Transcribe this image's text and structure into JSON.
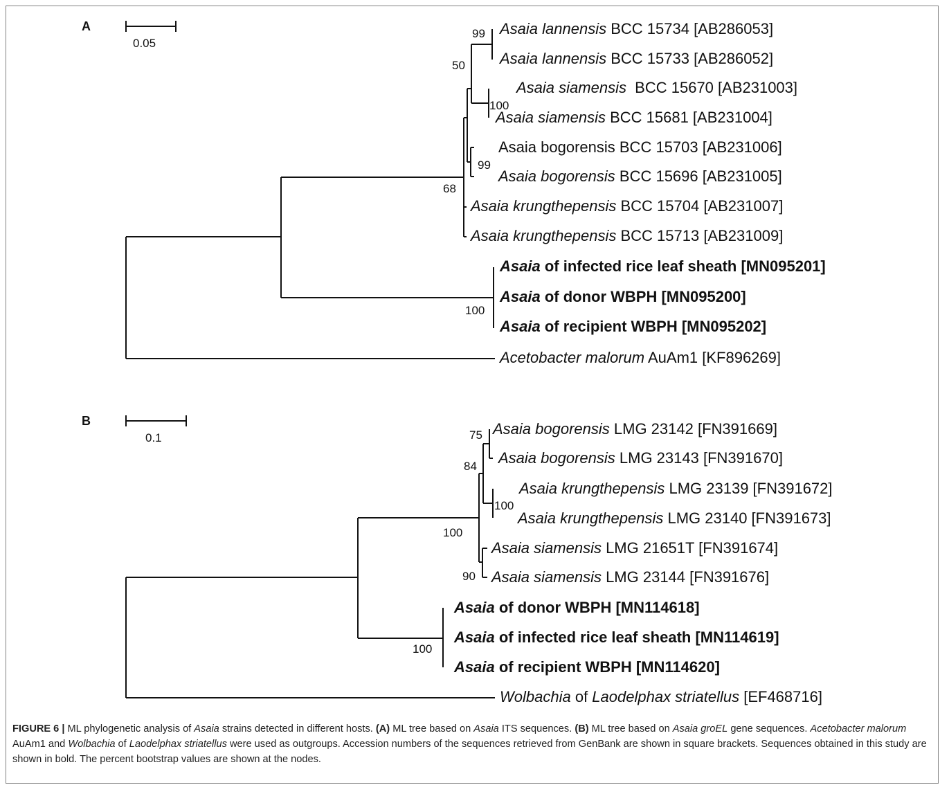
{
  "panels": [
    {
      "label": "A",
      "scale_label": "0.05",
      "taxa": [
        {
          "italic": "Asaia lannensis",
          "rest": " BCC 15734 [AB286053]",
          "bold": false
        },
        {
          "italic": "Asaia lannensis",
          "rest": " BCC 15733 [AB286052]",
          "bold": false
        },
        {
          "italic": "Asaia siamensis",
          "rest": "  BCC 15670 [AB231003]",
          "bold": false
        },
        {
          "italic": "Asaia siamensis",
          "rest": " BCC 15681 [AB231004]",
          "bold": false
        },
        {
          "italic": "",
          "rest": "Asaia bogorensis BCC 15703 [AB231006]",
          "bold": false
        },
        {
          "italic": "Asaia bogorensis",
          "rest": " BCC 15696 [AB231005]",
          "bold": false
        },
        {
          "italic": "Asaia krungthepensis",
          "rest": " BCC 15704 [AB231007]",
          "bold": false
        },
        {
          "italic": "Asaia krungthepensis",
          "rest": " BCC 15713 [AB231009]",
          "bold": false
        },
        {
          "italic": "Asaia",
          "rest": " of infected rice leaf sheath [MN095201]",
          "bold": true
        },
        {
          "italic": "Asaia",
          "rest": " of donor WBPH [MN095200]",
          "bold": true
        },
        {
          "italic": "Asaia",
          "rest": " of recipient WBPH [MN095202]",
          "bold": true
        },
        {
          "italic": "Acetobacter malorum",
          "rest": " AuAm1 [KF896269]",
          "bold": false
        }
      ],
      "bootstrap": [
        "99",
        "50",
        "100",
        "99",
        "68",
        "100"
      ]
    },
    {
      "label": "B",
      "scale_label": "0.1",
      "taxa": [
        {
          "italic": "Asaia bogorensis",
          "rest": " LMG 23142 [FN391669]",
          "bold": false
        },
        {
          "italic": "Asaia bogorensis",
          "rest": " LMG 23143 [FN391670]",
          "bold": false
        },
        {
          "italic": "Asaia krungthepensis",
          "rest": " LMG 23139 [FN391672]",
          "bold": false
        },
        {
          "italic": "Asaia krungthepensis",
          "rest": " LMG 23140 [FN391673]",
          "bold": false
        },
        {
          "italic": "Asaia siamensis",
          "rest": " LMG 21651T [FN391674]",
          "bold": false
        },
        {
          "italic": "Asaia siamensis",
          "rest": " LMG 23144 [FN391676]",
          "bold": false
        },
        {
          "italic": "Asaia",
          "rest": " of donor WBPH [MN114618]",
          "bold": true
        },
        {
          "italic": "Asaia",
          "rest": " of infected rice leaf sheath [MN114619]",
          "bold": true
        },
        {
          "italic": "Asaia",
          "rest": " of recipient WBPH [MN114620]",
          "bold": true
        },
        {
          "italic": "Wolbachia",
          "rest": " of ",
          "italic2": "Laodelphax striatellus",
          "rest2": " [EF468716]",
          "bold": false
        }
      ],
      "bootstrap": [
        "75",
        "84",
        "100",
        "100",
        "90",
        "100"
      ]
    }
  ],
  "caption": [
    {
      "t": "FIGURE 6 | ",
      "s": "b"
    },
    {
      "t": "ML phylogenetic analysis of ",
      "s": ""
    },
    {
      "t": "Asaia",
      "s": "i"
    },
    {
      "t": " strains detected in different hosts. ",
      "s": ""
    },
    {
      "t": "(A)",
      "s": "b"
    },
    {
      "t": " ML tree based on ",
      "s": ""
    },
    {
      "t": "Asaia",
      "s": "i"
    },
    {
      "t": " ITS sequences. ",
      "s": ""
    },
    {
      "t": "(B)",
      "s": "b"
    },
    {
      "t": " ML tree based on ",
      "s": ""
    },
    {
      "t": "Asaia groEL",
      "s": "i"
    },
    {
      "t": " gene sequences. ",
      "s": ""
    },
    {
      "t": "Acetobacter malorum",
      "s": "i"
    },
    {
      "t": " AuAm1 and ",
      "s": ""
    },
    {
      "t": "Wolbachia",
      "s": "i"
    },
    {
      "t": " of ",
      "s": ""
    },
    {
      "t": "Laodelphax striatellus",
      "s": "i"
    },
    {
      "t": " were used as outgroups. Accession numbers of the sequences retrieved from GenBank are shown in square brackets. Sequences obtained in this study are shown in bold. The percent bootstrap values are shown at the nodes.",
      "s": ""
    }
  ]
}
